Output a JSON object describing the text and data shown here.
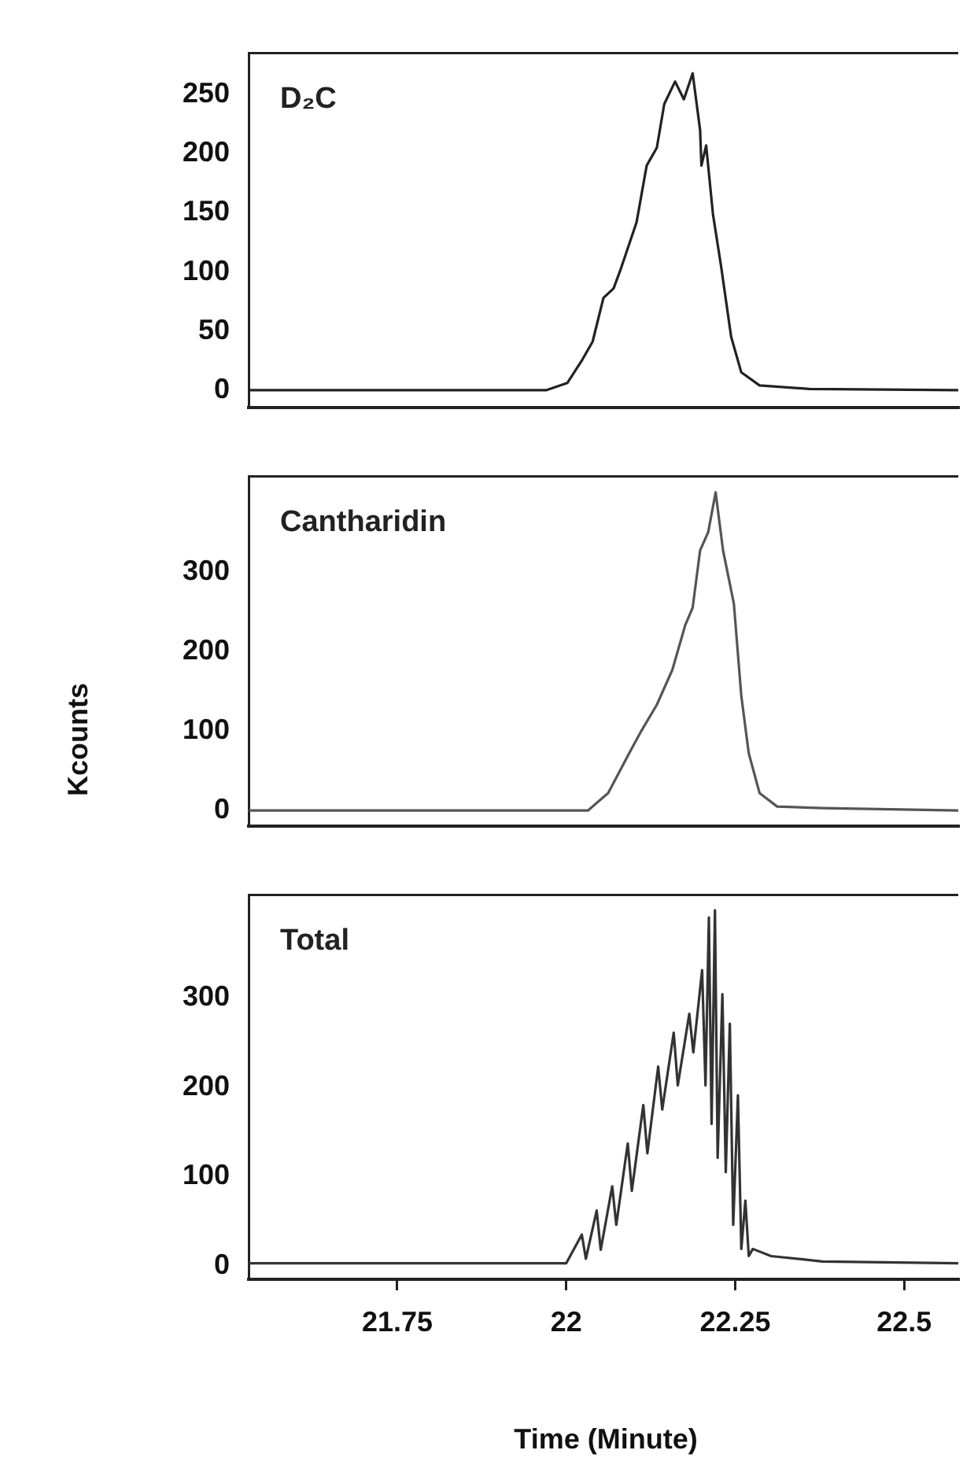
{
  "chart_data": [
    {
      "type": "line",
      "xlim": [
        21.53,
        22.58
      ],
      "ylim": [
        -15,
        285
      ],
      "yticks": [
        0,
        50,
        100,
        150,
        200,
        250
      ],
      "tick_labels": "y",
      "legend": false,
      "marker": "none",
      "x": [
        21.53,
        21.971,
        22.0015,
        22.024,
        22.039,
        22.055,
        22.07,
        22.081,
        22.104,
        22.119,
        22.134,
        22.145,
        22.161,
        22.174,
        22.187,
        22.198,
        22.2,
        22.207,
        22.217,
        22.229,
        22.244,
        22.259,
        22.286,
        22.36,
        22.58
      ],
      "series": [
        {
          "name": "D₂C",
          "color": "#222222",
          "values": [
            0,
            0,
            6,
            26,
            41,
            78,
            86,
            103,
            142,
            190,
            205,
            242,
            261,
            246,
            268,
            220,
            190,
            207,
            149,
            105,
            45,
            15,
            4,
            1,
            0
          ]
        }
      ]
    },
    {
      "type": "line",
      "xlim": [
        21.53,
        22.58
      ],
      "ylim": [
        -20,
        420
      ],
      "yticks": [
        0,
        100,
        200,
        300
      ],
      "tick_labels": "y",
      "legend": false,
      "marker": "none",
      "ylabel": "Kcounts",
      "x": [
        21.53,
        21.994,
        22.032,
        22.062,
        22.093,
        22.111,
        22.134,
        22.157,
        22.176,
        22.187,
        22.198,
        22.21,
        22.221,
        22.232,
        22.248,
        22.259,
        22.27,
        22.286,
        22.312,
        22.38,
        22.58
      ],
      "series": [
        {
          "name": "Cantharidin",
          "color": "#555555",
          "values": [
            0,
            0,
            0,
            22,
            72,
            100,
            133,
            177,
            233,
            255,
            327,
            350,
            400,
            327,
            260,
            144,
            72,
            22,
            5,
            3,
            0
          ]
        }
      ]
    },
    {
      "type": "line",
      "xlim": [
        21.53,
        22.58
      ],
      "ylim": [
        -15,
        415
      ],
      "xticks": [
        21.75,
        22,
        22.25,
        22.5
      ],
      "yticks": [
        0,
        100,
        200,
        300
      ],
      "legend": false,
      "marker": "none",
      "xlabel": "Time (Minute)",
      "x": [
        21.53,
        22.0,
        22.023,
        22.029,
        22.045,
        22.051,
        22.068,
        22.074,
        22.091,
        22.097,
        22.114,
        22.12,
        22.136,
        22.142,
        22.159,
        22.165,
        22.182,
        22.188,
        22.201,
        22.206,
        22.211,
        22.215,
        22.22,
        22.224,
        22.231,
        22.236,
        22.242,
        22.247,
        22.254,
        22.259,
        22.265,
        22.27,
        22.276,
        22.303,
        22.379,
        22.58
      ],
      "series": [
        {
          "name": "Total",
          "color": "#333333",
          "values": [
            3,
            3,
            35,
            8,
            62,
            18,
            89,
            46,
            137,
            84,
            180,
            126,
            223,
            175,
            261,
            202,
            282,
            239,
            331,
            202,
            390,
            159,
            398,
            121,
            304,
            105,
            271,
            46,
            191,
            19,
            73,
            11,
            19,
            11,
            5,
            3
          ]
        }
      ]
    }
  ]
}
